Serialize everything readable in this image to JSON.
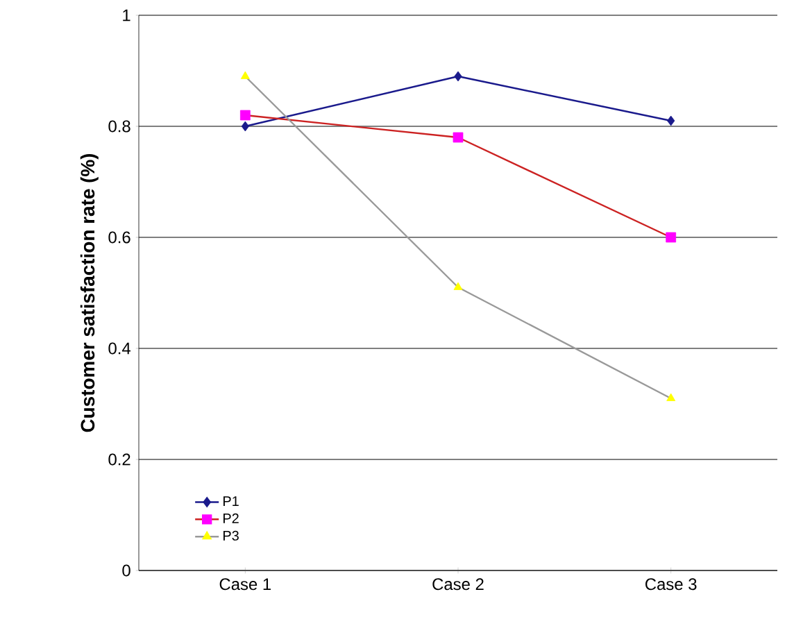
{
  "chart_data": {
    "type": "line",
    "ylabel": "Customer satisfaction rate (%)",
    "categories": [
      "Case 1",
      "Case 2",
      "Case 3"
    ],
    "series": [
      {
        "name": "P1",
        "color": "#1a1a8c",
        "colors": [
          "#1a1a8c",
          "#1a1a8c",
          "#1a1a8c"
        ],
        "marker": "diamond",
        "values": [
          0.8,
          0.89,
          0.81
        ]
      },
      {
        "name": "P2",
        "color": "#cc2222",
        "colors": [
          "#ff00ff",
          "#ff00ff",
          "#ff00ff"
        ],
        "marker": "square",
        "values": [
          0.82,
          0.78,
          0.6
        ]
      },
      {
        "name": "P3",
        "color": "#999999",
        "colors": [
          "#ffff00",
          "#ffff00",
          "#ffff00"
        ],
        "marker": "triangle",
        "values": [
          0.89,
          0.51,
          0.31
        ]
      }
    ],
    "ylim": [
      0,
      1
    ],
    "yticks": [
      0,
      0.2,
      0.4,
      0.6,
      0.8,
      1
    ],
    "grid": "y",
    "legend": "bottom left",
    "line_style": "solid"
  }
}
